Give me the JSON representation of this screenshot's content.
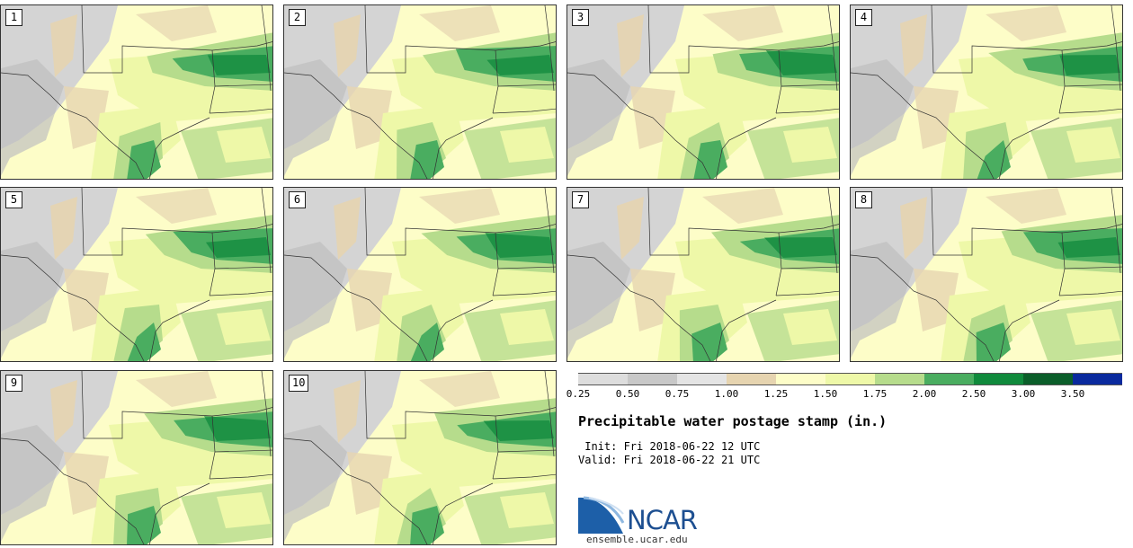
{
  "panels": [
    {
      "label": "1"
    },
    {
      "label": "2"
    },
    {
      "label": "3"
    },
    {
      "label": "4"
    },
    {
      "label": "5"
    },
    {
      "label": "6"
    },
    {
      "label": "7"
    },
    {
      "label": "8"
    },
    {
      "label": "9"
    },
    {
      "label": "10"
    }
  ],
  "colorbar": {
    "ticks": [
      "0.25",
      "0.50",
      "0.75",
      "1.00",
      "1.25",
      "1.50",
      "1.75",
      "2.00",
      "2.50",
      "3.00",
      "3.50"
    ],
    "colors": [
      "#dddddd",
      "#c8c8c8",
      "#e4e4e4",
      "#e6d4b0",
      "#fdfdc8",
      "#eef8a8",
      "#b6dc8c",
      "#4aad60",
      "#108a3c",
      "#0b5e2a",
      "#0a2a9e"
    ]
  },
  "title": "Precipitable water postage stamp (in.)",
  "init_line": " Init: Fri 2018-06-22 12 UTC",
  "valid_line": "Valid: Fri 2018-06-22 21 UTC",
  "logo": {
    "text": "NCAR",
    "url": "ensemble.ucar.edu"
  }
}
